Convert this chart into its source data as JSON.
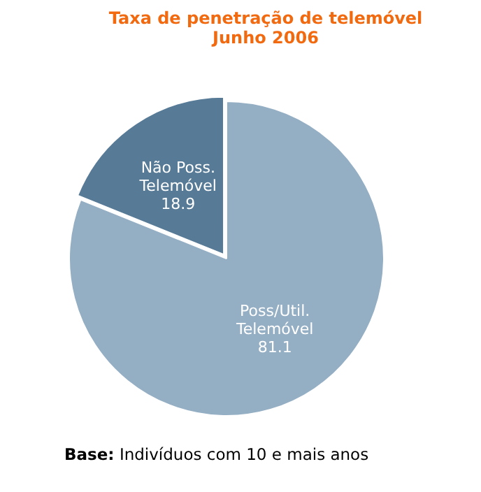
{
  "chart_data": {
    "type": "pie",
    "title": "Taxa de penetração de telemóvel",
    "subtitle": "Junho 2006",
    "categories": [
      "Poss/Util. Telemóvel",
      "Não Poss. Telemóvel"
    ],
    "values": [
      81.1,
      18.9
    ],
    "colors": [
      "#94aec4",
      "#577a96"
    ],
    "data_labels": true,
    "annotations": [
      "Base: Indivíduos com 10 e mais anos"
    ]
  }
}
